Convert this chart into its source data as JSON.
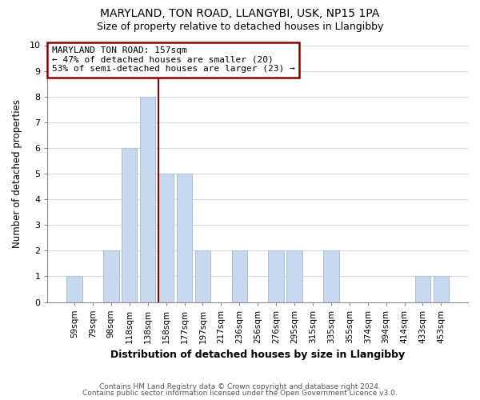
{
  "title": "MARYLAND, TON ROAD, LLANGYBI, USK, NP15 1PA",
  "subtitle": "Size of property relative to detached houses in Llangibby",
  "xlabel": "Distribution of detached houses by size in Llangibby",
  "ylabel": "Number of detached properties",
  "bar_color": "#c8d8ee",
  "bar_edgecolor": "#aabfd8",
  "categories": [
    "59sqm",
    "79sqm",
    "98sqm",
    "118sqm",
    "138sqm",
    "158sqm",
    "177sqm",
    "197sqm",
    "217sqm",
    "236sqm",
    "256sqm",
    "276sqm",
    "295sqm",
    "315sqm",
    "335sqm",
    "355sqm",
    "374sqm",
    "394sqm",
    "414sqm",
    "433sqm",
    "453sqm"
  ],
  "values": [
    1,
    0,
    2,
    6,
    8,
    5,
    5,
    2,
    0,
    2,
    0,
    2,
    2,
    0,
    2,
    0,
    0,
    0,
    0,
    1,
    1
  ],
  "ylim": [
    0,
    10
  ],
  "yticks": [
    0,
    1,
    2,
    3,
    4,
    5,
    6,
    7,
    8,
    9,
    10
  ],
  "marker_label": "MARYLAND TON ROAD: 157sqm",
  "annotation_line1": "← 47% of detached houses are smaller (20)",
  "annotation_line2": "53% of semi-detached houses are larger (23) →",
  "marker_color": "#8b0000",
  "annotation_box_color": "#ffffff",
  "annotation_box_edgecolor": "#8b0000",
  "footer1": "Contains HM Land Registry data © Crown copyright and database right 2024.",
  "footer2": "Contains public sector information licensed under the Open Government Licence v3.0.",
  "background_color": "#ffffff",
  "plot_bg_color": "#ffffff",
  "grid_color": "#d0d8e8"
}
